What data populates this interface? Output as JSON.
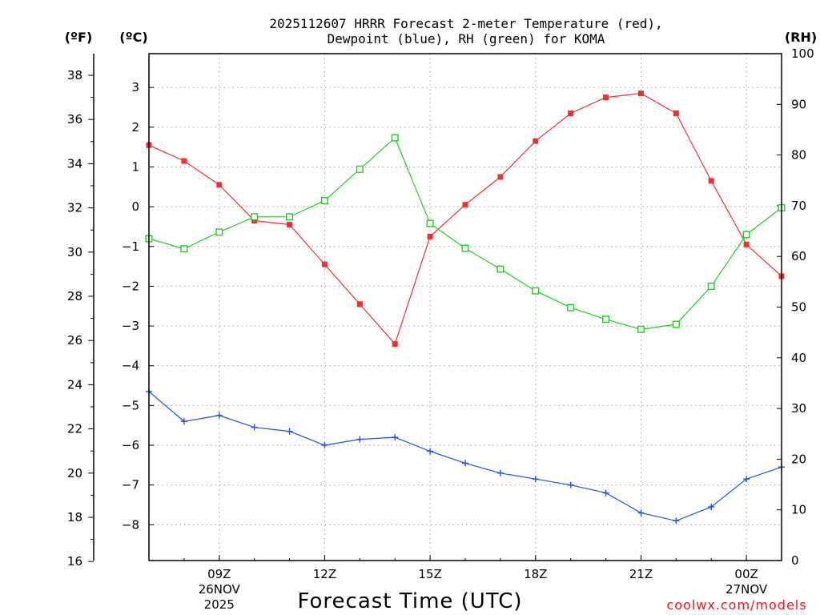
{
  "chart_data": {
    "type": "line",
    "title_line1": "2025112607 HRRR Forecast 2-meter Temperature (red),",
    "title_line2": "Dewpoint (blue), RH (green) for KOMA",
    "xlabel": "Forecast Time (UTC)",
    "credit": "coolwx.com/models",
    "axes": {
      "fahrenheit_unit": "(ºF)",
      "celsius_unit": "(ºC)",
      "rh_unit": "(RH)",
      "fahrenheit_ticks": [
        "16",
        "18",
        "20",
        "22",
        "24",
        "26",
        "28",
        "30",
        "32",
        "34",
        "36",
        "38"
      ],
      "celsius_ticks": [
        "−8",
        "−7",
        "−6",
        "−5",
        "−4",
        "−3",
        "−2",
        "−1",
        "0",
        "1",
        "2",
        "3"
      ],
      "celsius_tick_values": [
        -8,
        -7,
        -6,
        -5,
        -4,
        -3,
        -2,
        -1,
        0,
        1,
        2,
        3
      ],
      "rh_ticks": [
        "0",
        "10",
        "20",
        "30",
        "40",
        "50",
        "60",
        "70",
        "80",
        "90",
        "100"
      ],
      "rh_tick_values": [
        0,
        10,
        20,
        30,
        40,
        50,
        60,
        70,
        80,
        90,
        100
      ],
      "ylim_celsius": [
        -8.9,
        3.85
      ],
      "ylim_rh": [
        0,
        100
      ]
    },
    "x_hours": [
      7,
      8,
      9,
      10,
      11,
      12,
      13,
      14,
      15,
      16,
      17,
      18,
      19,
      20,
      21,
      22,
      23,
      24,
      25
    ],
    "x_ticks": [
      {
        "hour": 9,
        "line1": "09Z",
        "line2": "26NOV",
        "line3": "2025"
      },
      {
        "hour": 12,
        "line1": "12Z",
        "line2": "",
        "line3": ""
      },
      {
        "hour": 15,
        "line1": "15Z",
        "line2": "",
        "line3": ""
      },
      {
        "hour": 18,
        "line1": "18Z",
        "line2": "",
        "line3": ""
      },
      {
        "hour": 21,
        "line1": "21Z",
        "line2": "",
        "line3": ""
      },
      {
        "hour": 24,
        "line1": "00Z",
        "line2": "27NOV",
        "line3": ""
      }
    ],
    "xlim_hours": [
      7,
      25
    ],
    "series": [
      {
        "name": "2-meter Temperature",
        "unit": "°C",
        "axis": "celsius",
        "color": "#ee3030",
        "marker": "filled-square",
        "values": [
          1.55,
          1.15,
          0.55,
          -0.35,
          -0.45,
          -1.45,
          -2.45,
          -3.45,
          -0.75,
          0.05,
          0.75,
          1.65,
          2.35,
          2.75,
          2.85,
          2.35,
          0.65,
          -0.95,
          -1.75
        ]
      },
      {
        "name": "Dewpoint",
        "unit": "°C",
        "axis": "celsius",
        "color": "#2050e0",
        "marker": "plus",
        "values": [
          -4.65,
          -5.4,
          -5.25,
          -5.55,
          -5.65,
          -6.0,
          -5.85,
          -5.8,
          -6.15,
          -6.45,
          -6.7,
          -6.85,
          -7.0,
          -7.2,
          -7.7,
          -7.9,
          -7.55,
          -6.85,
          -6.55
        ]
      },
      {
        "name": "Relative Humidity",
        "unit": "%",
        "axis": "rh",
        "color": "#22cc22",
        "marker": "open-square",
        "values": [
          63.5,
          61.5,
          64.8,
          67.8,
          67.8,
          71.0,
          77.2,
          83.4,
          66.5,
          61.6,
          57.5,
          53.2,
          49.9,
          47.6,
          45.6,
          46.6,
          54.1,
          64.3,
          69.6
        ]
      }
    ]
  }
}
